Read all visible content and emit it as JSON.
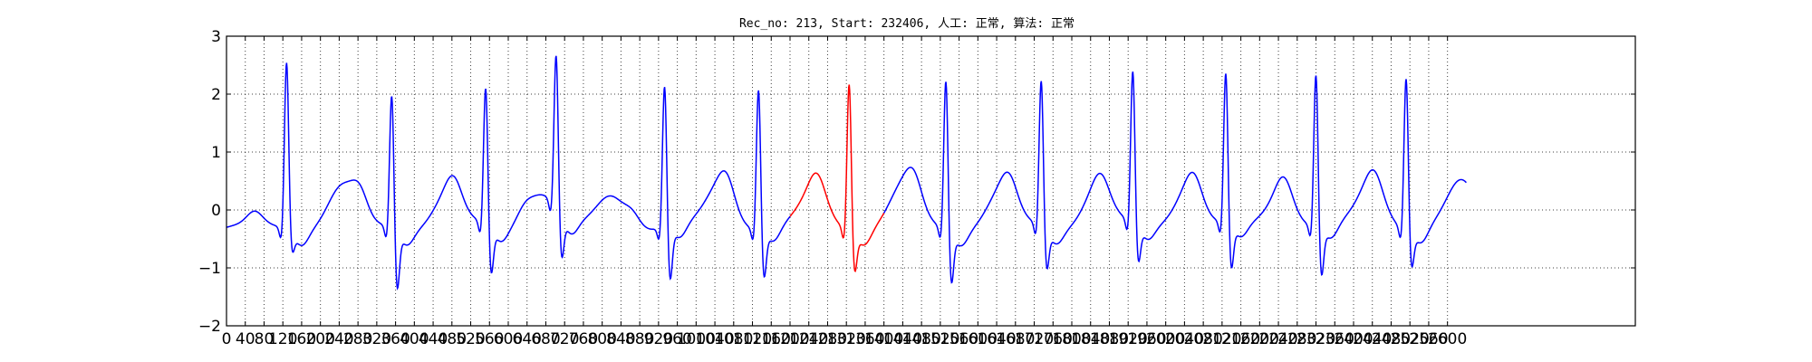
{
  "chart_data": {
    "type": "line",
    "title": "Rec_no: 213, Start: 232406, 人工: 正常, 算法: 正常",
    "xlabel": "",
    "ylabel": "",
    "xlim": [
      0,
      3000
    ],
    "ylim": [
      -2,
      3
    ],
    "grid": true,
    "x_tick_step": 40,
    "x_tick_labels": [
      "0",
      "40",
      "80",
      "120",
      "160",
      "200",
      "240",
      "280",
      "320",
      "360",
      "400",
      "440",
      "480",
      "520",
      "560",
      "600",
      "640",
      "680",
      "720",
      "760",
      "800",
      "840",
      "880",
      "920",
      "960",
      "1000",
      "1040",
      "1080",
      "1120",
      "1160",
      "1200",
      "1240",
      "1280",
      "1320",
      "1360",
      "1400",
      "1440",
      "1480",
      "1520",
      "1560",
      "1600",
      "1640",
      "1680",
      "1720",
      "1760",
      "1800",
      "1840",
      "1880",
      "1920",
      "1960",
      "2000",
      "2040",
      "2080",
      "2120",
      "2160",
      "2200",
      "2240",
      "2280",
      "2320",
      "2360",
      "2400",
      "2440",
      "2480",
      "2520",
      "2560",
      "2600"
    ],
    "y_ticks": [
      -2,
      -1,
      0,
      1,
      2,
      3
    ],
    "y_tick_labels": [
      "−2",
      "−1",
      "0",
      "1",
      "2",
      "3"
    ],
    "beats": [
      {
        "r": 128,
        "amp": 2.62,
        "s": -0.55,
        "tamp": 0.7,
        "pamp": 0.2,
        "color": "#0000ff"
      },
      {
        "r": 352,
        "amp": 2.08,
        "s": -1.22,
        "tamp": 0.55,
        "pamp": 0.35,
        "color": "#0000ff"
      },
      {
        "r": 552,
        "amp": 2.12,
        "s": -1.02,
        "tamp": 0.6,
        "pamp": 0.35,
        "color": "#0000ff"
      },
      {
        "r": 702,
        "amp": 2.4,
        "s": -0.95,
        "tamp": 0.55,
        "pamp": 0.2,
        "color": "#0000ff"
      },
      {
        "r": 933,
        "amp": 2.22,
        "s": -1.12,
        "tamp": 0.7,
        "pamp": 0.2,
        "color": "#0000ff"
      },
      {
        "r": 1133,
        "amp": 2.2,
        "s": -1.02,
        "tamp": 0.55,
        "pamp": 0.35,
        "color": "#0000ff"
      },
      {
        "r": 1326,
        "amp": 2.3,
        "s": -0.88,
        "tamp": 0.7,
        "pamp": 0.35,
        "color": "#ff0000"
      },
      {
        "r": 1532,
        "amp": 2.35,
        "s": -1.1,
        "tamp": 0.6,
        "pamp": 0.35,
        "color": "#0000ff"
      },
      {
        "r": 1735,
        "amp": 2.28,
        "s": -0.9,
        "tamp": 0.65,
        "pamp": 0.35,
        "color": "#0000ff"
      },
      {
        "r": 1930,
        "amp": 2.37,
        "s": -0.85,
        "tamp": 0.7,
        "pamp": 0.3,
        "color": "#0000ff"
      },
      {
        "r": 2128,
        "amp": 2.36,
        "s": -0.98,
        "tamp": 0.6,
        "pamp": 0.35,
        "color": "#0000ff"
      },
      {
        "r": 2320,
        "amp": 2.4,
        "s": -1.05,
        "tamp": 0.7,
        "pamp": 0.35,
        "color": "#0000ff"
      },
      {
        "r": 2512,
        "amp": 2.38,
        "s": -0.82,
        "tamp": 0.75,
        "pamp": 0.3,
        "color": "#0000ff"
      }
    ],
    "series": [
      {
        "x_start": 0,
        "x_end": 1200,
        "color": "#0000ff"
      },
      {
        "x_start": 1200,
        "x_end": 1400,
        "color": "#ff0000"
      },
      {
        "x_start": 1400,
        "x_end": 2640,
        "color": "#0000ff"
      }
    ]
  }
}
